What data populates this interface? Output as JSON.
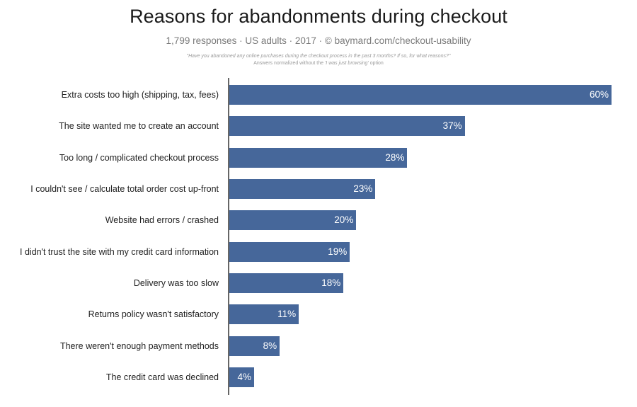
{
  "header": {
    "title": "Reasons for abandonments during checkout",
    "subtitle": "1,799 responses  ·  US adults  ·  2017  ·  ©  baymard.com/checkout-usability",
    "question": "\"Have you abandoned any online purchases during the checkout process in the past 3 months? If so, for what reasons?\"",
    "note_prefix": "Answers normalized without the ",
    "note_emph": "'I was just browsing'",
    "note_suffix": " option"
  },
  "style": {
    "bar_color": "#46679a",
    "axis_color": "#666666"
  },
  "chart_data": {
    "type": "bar",
    "orientation": "horizontal",
    "title": "Reasons for abandonments during checkout",
    "subtitle": "1,799 responses · US adults · 2017 · © baymard.com/checkout-usability",
    "annotations": [
      "\"Have you abandoned any online purchases during the checkout process in the past 3 months? If so, for what reasons?\"",
      "Answers normalized without the 'I was just browsing' option"
    ],
    "xlabel": "",
    "ylabel": "",
    "xlim": [
      0,
      60
    ],
    "grid": false,
    "legend": null,
    "unit": "%",
    "categories": [
      "Extra costs too high (shipping, tax, fees)",
      "The site wanted me to create an account",
      "Too long / complicated checkout process",
      "I couldn't see / calculate total order cost up-front",
      "Website had errors / crashed",
      "I didn't trust the site with my credit card information",
      "Delivery was too slow",
      "Returns policy wasn't satisfactory",
      "There weren't enough payment methods",
      "The credit card was declined"
    ],
    "values": [
      60,
      37,
      28,
      23,
      20,
      19,
      18,
      11,
      8,
      4
    ],
    "value_labels": [
      "60%",
      "37%",
      "28%",
      "23%",
      "20%",
      "19%",
      "18%",
      "11%",
      "8%",
      "4%"
    ]
  }
}
